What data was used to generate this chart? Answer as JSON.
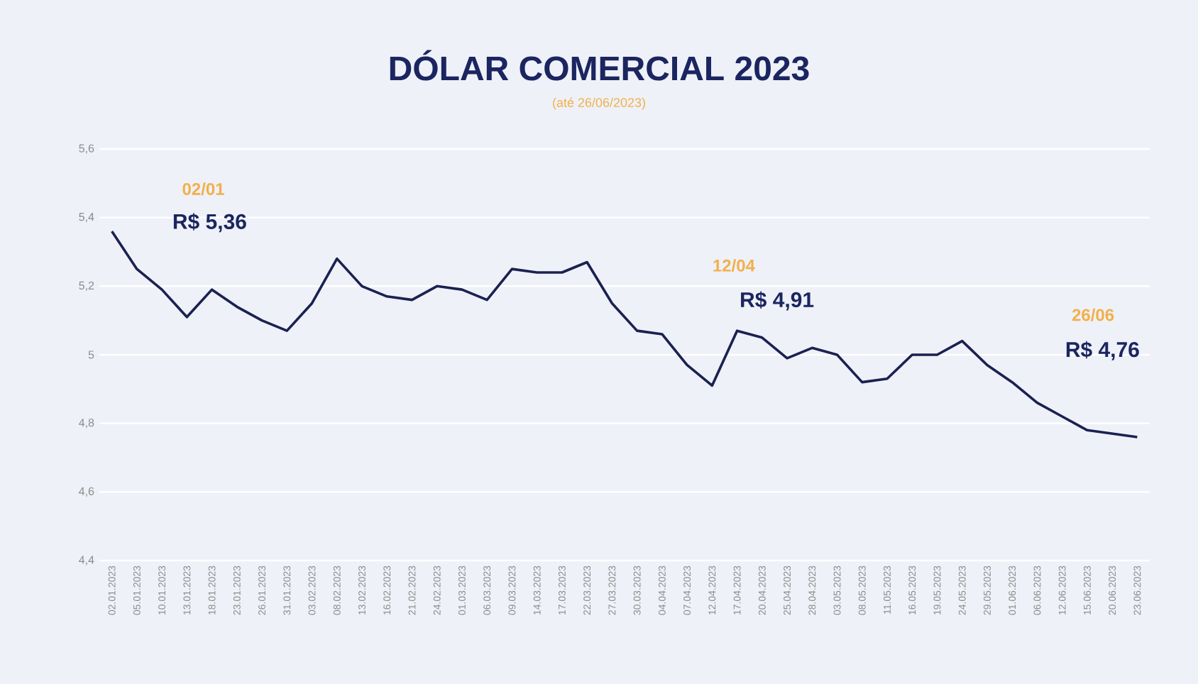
{
  "chart_data": {
    "type": "line",
    "title": "DÓLAR COMERCIAL 2023",
    "subtitle": "(até 26/06/2023)",
    "categories": [
      "02.01.2023",
      "05.01.2023",
      "10.01.2023",
      "13.01.2023",
      "18.01.2023",
      "23.01.2023",
      "26.01.2023",
      "31.01.2023",
      "03.02.2023",
      "08.02.2023",
      "13.02.2023",
      "16.02.2023",
      "21.02.2023",
      "24.02.2023",
      "01.03.2023",
      "06.03.2023",
      "09.03.2023",
      "14.03.2023",
      "17.03.2023",
      "22.03.2023",
      "27.03.2023",
      "30.03.2023",
      "04.04.2023",
      "07.04.2023",
      "12.04.2023",
      "17.04.2023",
      "20.04.2023",
      "25.04.2023",
      "28.04.2023",
      "03.05.2023",
      "08.05.2023",
      "11.05.2023",
      "16.05.2023",
      "19.05.2023",
      "24.05.2023",
      "29.05.2023",
      "01.06.2023",
      "06.06.2023",
      "12.06.2023",
      "15.06.2023",
      "20.06.2023",
      "23.06.2023"
    ],
    "series": [
      {
        "color": "#1b2150",
        "values": [
          5.36,
          5.25,
          5.19,
          5.11,
          5.19,
          5.14,
          5.1,
          5.07,
          5.15,
          5.28,
          5.2,
          5.17,
          5.16,
          5.2,
          5.19,
          5.16,
          5.25,
          5.24,
          5.24,
          5.27,
          5.15,
          5.07,
          5.06,
          4.97,
          4.91,
          5.07,
          5.05,
          4.99,
          5.02,
          5.0,
          4.92,
          4.93,
          5.0,
          5.0,
          5.04,
          4.97,
          4.92,
          4.86,
          4.82,
          4.78,
          4.77,
          4.76
        ]
      }
    ],
    "ylim": [
      4.4,
      5.6
    ],
    "yticks": [
      {
        "value": 4.4,
        "label": "4,4"
      },
      {
        "value": 4.6,
        "label": "4,6"
      },
      {
        "value": 4.8,
        "label": "4,8"
      },
      5,
      {
        "value": 5.2,
        "label": "5,2"
      },
      {
        "value": 5.4,
        "label": "5,4"
      },
      {
        "value": 5.6,
        "label": "5,6"
      }
    ],
    "grid": "y",
    "legend": false,
    "marker": "none",
    "line_style": "solid",
    "annotations": [
      "02/01",
      "R$ 5,36",
      "12/04",
      "R$ 4,91",
      "26/06",
      "R$ 4,76"
    ]
  }
}
